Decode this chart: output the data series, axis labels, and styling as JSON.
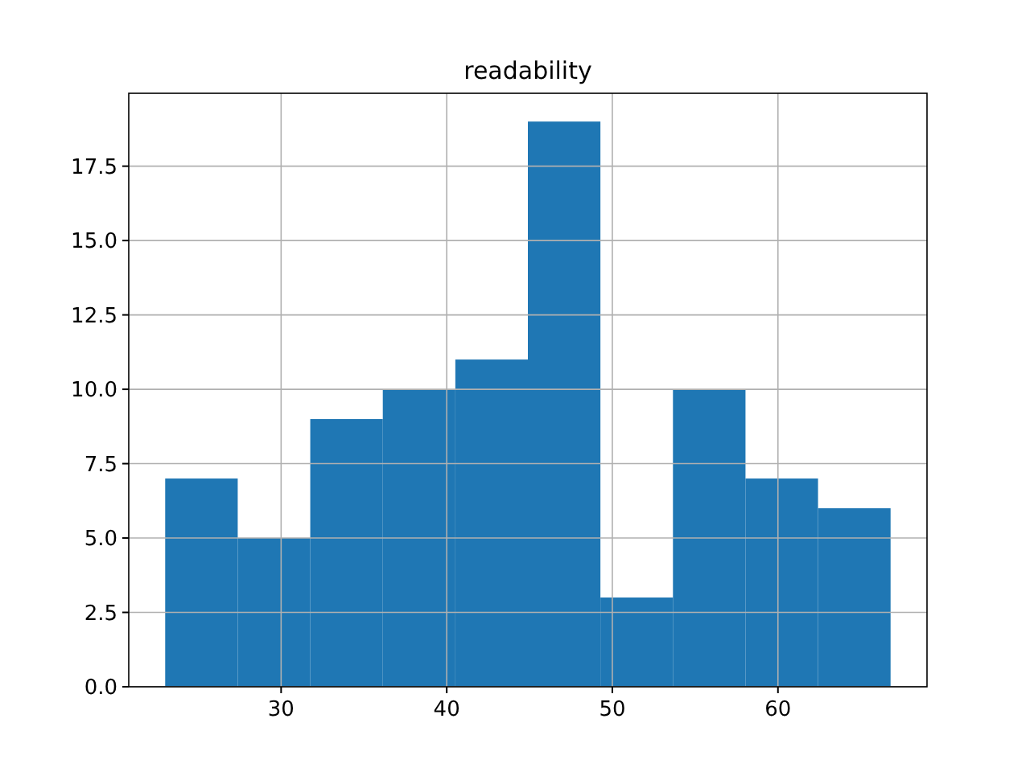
{
  "chart_data": {
    "type": "histogram",
    "title": "readability",
    "bins": [
      23,
      27.38,
      31.76,
      36.14,
      40.52,
      44.9,
      49.28,
      53.66,
      58.04,
      62.42,
      66.8
    ],
    "values": [
      7,
      5,
      9,
      10,
      11,
      19,
      3,
      10,
      7,
      6
    ],
    "color": "#1f77b4",
    "xlim": [
      20.8,
      69
    ],
    "xticks": [
      30,
      40,
      50,
      60
    ],
    "ylim": [
      0,
      19.95
    ],
    "yticks": [
      {
        "value": 0,
        "label": "0.0"
      },
      {
        "value": 2.5,
        "label": "2.5"
      },
      {
        "value": 5,
        "label": "5.0"
      },
      {
        "value": 7.5,
        "label": "7.5"
      },
      {
        "value": 10,
        "label": "10.0"
      },
      {
        "value": 12.5,
        "label": "12.5"
      },
      {
        "value": 15,
        "label": "15.0"
      },
      {
        "value": 17.5,
        "label": "17.5"
      }
    ],
    "grid": true
  }
}
